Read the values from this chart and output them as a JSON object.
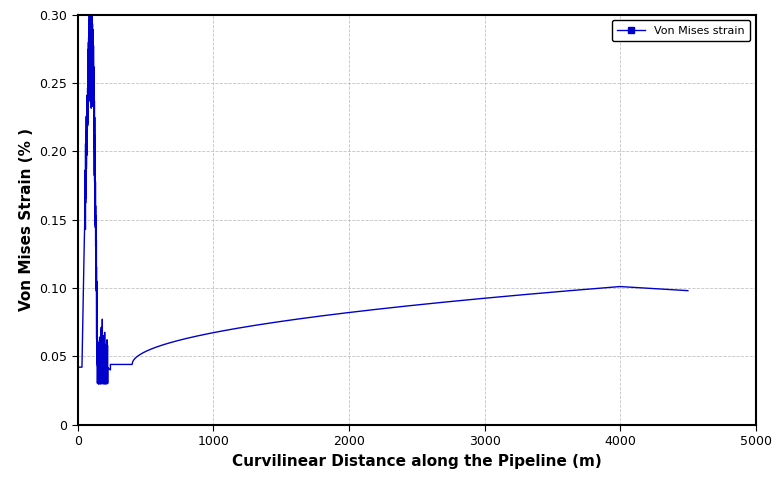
{
  "xlabel": "Curvilinear Distance along the Pipeline (m)",
  "ylabel": "Von Mises Strain (% )",
  "line_color": "#0000CD",
  "legend_label": "Von Mises strain",
  "xlim": [
    0,
    5000
  ],
  "ylim": [
    0,
    0.3
  ],
  "xticks": [
    0,
    1000,
    2000,
    3000,
    4000,
    5000
  ],
  "yticks": [
    0,
    0.05,
    0.1,
    0.15,
    0.2,
    0.25,
    0.3
  ],
  "background_color": "#ffffff",
  "grid_color": "#aaaaaa",
  "xlabel_fontsize": 11,
  "ylabel_fontsize": 11,
  "figsize": [
    7.79,
    4.88
  ],
  "dpi": 100
}
